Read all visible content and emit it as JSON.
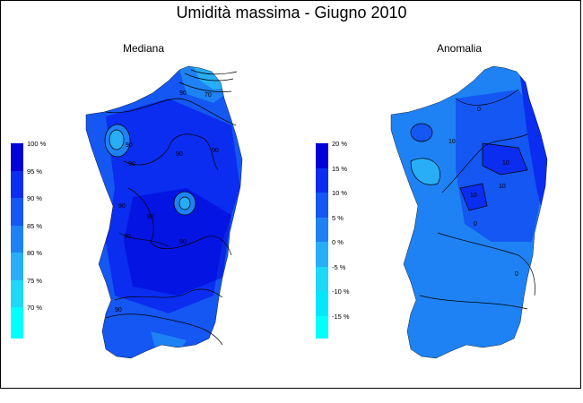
{
  "title": "Umidità massima - Giugno 2010",
  "panels": [
    {
      "subtitle": "Mediana",
      "legend": {
        "labels": [
          "100 %",
          "95 %",
          "90 %",
          "85 %",
          "80 %",
          "75 %",
          "70 %"
        ],
        "colors": [
          "#0000d8",
          "#0a2df0",
          "#1457f2",
          "#1e82f4",
          "#28aef6",
          "#1ed8f8",
          "#00ffff"
        ]
      },
      "contour_labels": [
        "70",
        "90",
        "90",
        "90",
        "90",
        "90",
        "90",
        "90",
        "90",
        "90",
        "90"
      ]
    },
    {
      "subtitle": "Anomalia",
      "legend": {
        "labels": [
          "20 %",
          "15 %",
          "10 %",
          "5 %",
          "0 %",
          "-5 %",
          "-10 %",
          "-15 %"
        ],
        "colors": [
          "#0000d8",
          "#0a2df0",
          "#1457f2",
          "#1e82f4",
          "#28aef6",
          "#1ed8f8",
          "#00e8fa",
          "#00ffff"
        ]
      },
      "contour_labels": [
        "0",
        "10",
        "10",
        "10",
        "10",
        "0",
        "0"
      ]
    }
  ]
}
